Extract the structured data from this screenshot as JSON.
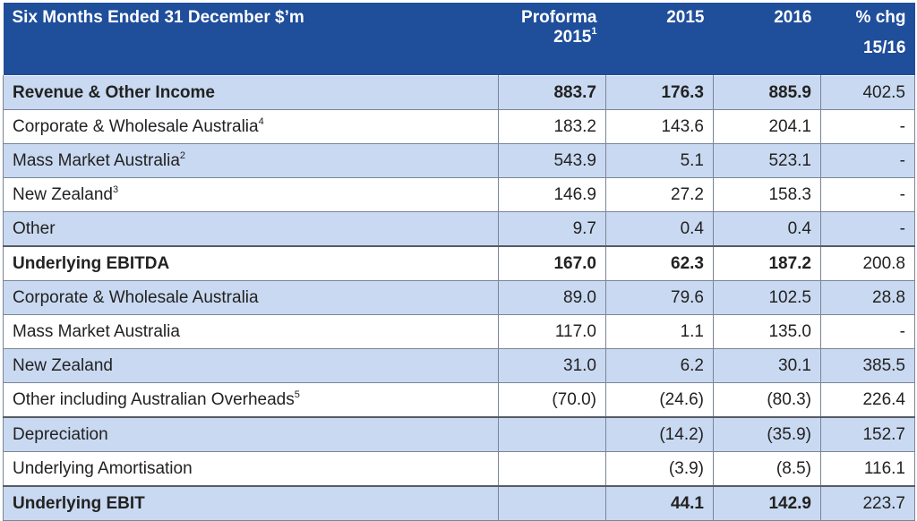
{
  "header": {
    "title": "Six Months Ended 31 December $’m",
    "col1_line1": "Proforma",
    "col1_line2": "2015",
    "col1_sup": "1",
    "col2": "2015",
    "col3": "2016",
    "col4_line1": "% chg",
    "col4_line2": "15/16"
  },
  "rows": [
    {
      "label": "Revenue & Other Income",
      "sup": "",
      "bold": true,
      "style": "b",
      "section": false,
      "v": [
        "883.7",
        "176.3",
        "885.9",
        "402.5"
      ]
    },
    {
      "label": "Corporate & Wholesale Australia",
      "sup": "4",
      "bold": false,
      "style": "w",
      "section": false,
      "v": [
        "183.2",
        "143.6",
        "204.1",
        "-"
      ]
    },
    {
      "label": "Mass Market Australia",
      "sup": "2",
      "bold": false,
      "style": "b",
      "section": false,
      "v": [
        "543.9",
        "5.1",
        "523.1",
        "-"
      ]
    },
    {
      "label": "New Zealand",
      "sup": "3",
      "bold": false,
      "style": "w",
      "section": false,
      "v": [
        "146.9",
        "27.2",
        "158.3",
        "-"
      ]
    },
    {
      "label": "Other",
      "sup": "",
      "bold": false,
      "style": "b",
      "section": false,
      "v": [
        "9.7",
        "0.4",
        "0.4",
        "-"
      ]
    },
    {
      "label": "Underlying EBITDA",
      "sup": "",
      "bold": true,
      "style": "w",
      "section": true,
      "v": [
        "167.0",
        "62.3",
        "187.2",
        "200.8"
      ]
    },
    {
      "label": "Corporate & Wholesale Australia",
      "sup": "",
      "bold": false,
      "style": "b",
      "section": false,
      "v": [
        "89.0",
        "79.6",
        "102.5",
        "28.8"
      ]
    },
    {
      "label": "Mass Market Australia",
      "sup": "",
      "bold": false,
      "style": "w",
      "section": false,
      "v": [
        "117.0",
        "1.1",
        "135.0",
        "-"
      ]
    },
    {
      "label": "New Zealand",
      "sup": "",
      "bold": false,
      "style": "b",
      "section": false,
      "v": [
        "31.0",
        "6.2",
        "30.1",
        "385.5"
      ]
    },
    {
      "label": "Other including Australian Overheads",
      "sup": "5",
      "bold": false,
      "style": "w",
      "section": false,
      "v": [
        "(70.0)",
        "(24.6)",
        "(80.3)",
        "226.4"
      ]
    },
    {
      "label": "Depreciation",
      "sup": "",
      "bold": false,
      "style": "b",
      "section": true,
      "v": [
        "",
        "(14.2)",
        "(35.9)",
        "152.7"
      ]
    },
    {
      "label": "Underlying Amortisation",
      "sup": "",
      "bold": false,
      "style": "w",
      "section": false,
      "v": [
        "",
        "(3.9)",
        "(8.5)",
        "116.1"
      ]
    },
    {
      "label": "Underlying EBIT",
      "sup": "",
      "bold": true,
      "style": "b",
      "section": true,
      "v": [
        "",
        "44.1",
        "142.9",
        "223.7"
      ]
    }
  ]
}
